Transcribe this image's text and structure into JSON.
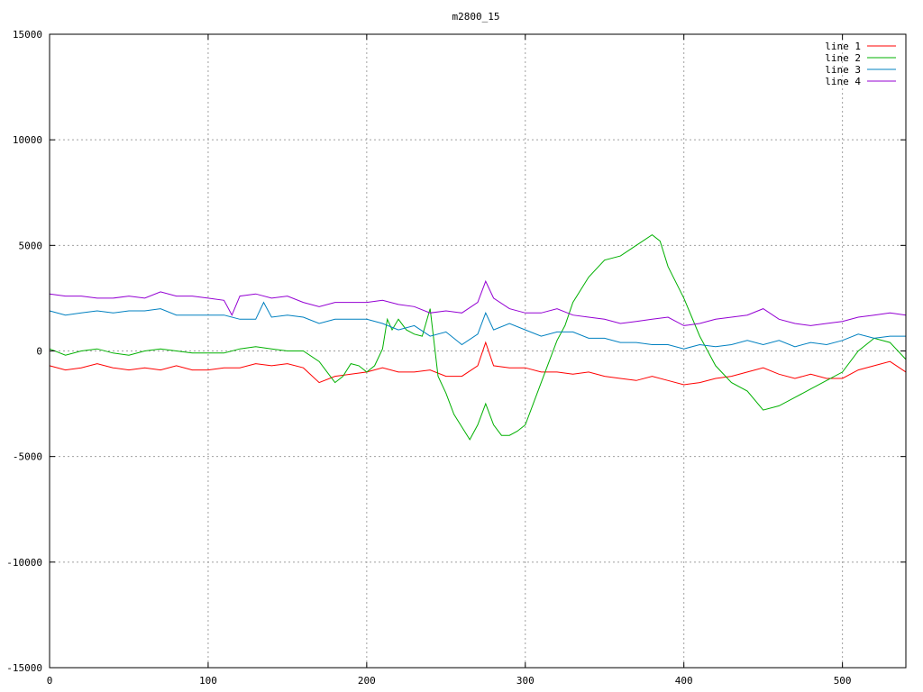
{
  "chart_data": {
    "type": "line",
    "title": "m2800_15",
    "xlabel": "",
    "ylabel": "",
    "xlim": [
      0,
      540
    ],
    "ylim": [
      -15000,
      15000
    ],
    "xticks": [
      0,
      100,
      200,
      300,
      400,
      500
    ],
    "yticks": [
      -15000,
      -10000,
      -5000,
      0,
      5000,
      10000,
      15000
    ],
    "grid": true,
    "legend_position": "top-right",
    "series": [
      {
        "name": "line 1",
        "color": "#ff0000",
        "x": [
          0,
          10,
          20,
          30,
          40,
          50,
          60,
          70,
          80,
          90,
          100,
          110,
          120,
          130,
          140,
          150,
          160,
          170,
          180,
          190,
          200,
          210,
          220,
          230,
          240,
          250,
          260,
          270,
          275,
          280,
          290,
          300,
          310,
          320,
          330,
          340,
          350,
          360,
          370,
          380,
          390,
          400,
          410,
          420,
          430,
          440,
          450,
          460,
          470,
          480,
          490,
          500,
          510,
          520,
          530,
          540
        ],
        "y": [
          -700,
          -900,
          -800,
          -600,
          -800,
          -900,
          -800,
          -900,
          -700,
          -900,
          -900,
          -800,
          -800,
          -600,
          -700,
          -600,
          -800,
          -1500,
          -1200,
          -1100,
          -1000,
          -800,
          -1000,
          -1000,
          -900,
          -1200,
          -1200,
          -700,
          400,
          -700,
          -800,
          -800,
          -1000,
          -1000,
          -1100,
          -1000,
          -1200,
          -1300,
          -1400,
          -1200,
          -1400,
          -1600,
          -1500,
          -1300,
          -1200,
          -1000,
          -800,
          -1100,
          -1300,
          -1100,
          -1300,
          -1300,
          -900,
          -700,
          -500,
          -1000
        ]
      },
      {
        "name": "line 2",
        "color": "#00b000",
        "x": [
          0,
          10,
          20,
          30,
          40,
          50,
          60,
          70,
          80,
          90,
          100,
          110,
          120,
          130,
          140,
          150,
          160,
          170,
          175,
          180,
          185,
          190,
          195,
          200,
          205,
          210,
          213,
          216,
          220,
          225,
          230,
          235,
          240,
          245,
          250,
          255,
          260,
          265,
          270,
          275,
          280,
          285,
          290,
          295,
          300,
          305,
          310,
          315,
          320,
          325,
          330,
          340,
          350,
          360,
          370,
          380,
          385,
          390,
          400,
          410,
          420,
          430,
          440,
          450,
          460,
          470,
          480,
          490,
          500,
          510,
          520,
          530,
          540
        ],
        "y": [
          100,
          -200,
          0,
          100,
          -100,
          -200,
          0,
          100,
          0,
          -100,
          -100,
          -100,
          100,
          200,
          100,
          0,
          0,
          -500,
          -1000,
          -1500,
          -1200,
          -600,
          -700,
          -1000,
          -700,
          100,
          1500,
          1000,
          1500,
          1000,
          800,
          700,
          2000,
          -1200,
          -2000,
          -3000,
          -3600,
          -4200,
          -3500,
          -2500,
          -3500,
          -4000,
          -4000,
          -3800,
          -3500,
          -2500,
          -1500,
          -500,
          500,
          1200,
          2300,
          3500,
          4300,
          4500,
          5000,
          5500,
          5200,
          4000,
          2500,
          700,
          -700,
          -1500,
          -1900,
          -2800,
          -2600,
          -2200,
          -1800,
          -1400,
          -1000,
          0,
          600,
          400,
          -400
        ]
      },
      {
        "name": "line 3",
        "color": "#0080c0",
        "x": [
          0,
          10,
          20,
          30,
          40,
          50,
          60,
          70,
          80,
          90,
          100,
          110,
          120,
          130,
          135,
          140,
          150,
          160,
          170,
          180,
          190,
          200,
          210,
          220,
          230,
          240,
          250,
          260,
          270,
          275,
          280,
          290,
          300,
          310,
          320,
          330,
          340,
          350,
          360,
          370,
          380,
          390,
          400,
          410,
          420,
          430,
          440,
          450,
          460,
          470,
          480,
          490,
          500,
          510,
          520,
          530,
          540
        ],
        "y": [
          1900,
          1700,
          1800,
          1900,
          1800,
          1900,
          1900,
          2000,
          1700,
          1700,
          1700,
          1700,
          1500,
          1500,
          2300,
          1600,
          1700,
          1600,
          1300,
          1500,
          1500,
          1500,
          1300,
          1000,
          1200,
          700,
          900,
          300,
          800,
          1800,
          1000,
          1300,
          1000,
          700,
          900,
          900,
          600,
          600,
          400,
          400,
          300,
          300,
          100,
          300,
          200,
          300,
          500,
          300,
          500,
          200,
          400,
          300,
          500,
          800,
          600,
          700,
          700
        ]
      },
      {
        "name": "line 4",
        "color": "#9400d3",
        "x": [
          0,
          10,
          20,
          30,
          40,
          50,
          60,
          70,
          80,
          90,
          100,
          110,
          115,
          120,
          130,
          140,
          150,
          160,
          170,
          180,
          190,
          200,
          210,
          220,
          230,
          240,
          250,
          260,
          270,
          275,
          280,
          290,
          300,
          310,
          320,
          330,
          340,
          350,
          360,
          370,
          380,
          390,
          400,
          410,
          420,
          430,
          440,
          450,
          460,
          470,
          480,
          490,
          500,
          510,
          520,
          530,
          540
        ],
        "y": [
          2700,
          2600,
          2600,
          2500,
          2500,
          2600,
          2500,
          2800,
          2600,
          2600,
          2500,
          2400,
          1700,
          2600,
          2700,
          2500,
          2600,
          2300,
          2100,
          2300,
          2300,
          2300,
          2400,
          2200,
          2100,
          1800,
          1900,
          1800,
          2300,
          3300,
          2500,
          2000,
          1800,
          1800,
          2000,
          1700,
          1600,
          1500,
          1300,
          1400,
          1500,
          1600,
          1200,
          1300,
          1500,
          1600,
          1700,
          2000,
          1500,
          1300,
          1200,
          1300,
          1400,
          1600,
          1700,
          1800,
          1700
        ]
      }
    ]
  }
}
